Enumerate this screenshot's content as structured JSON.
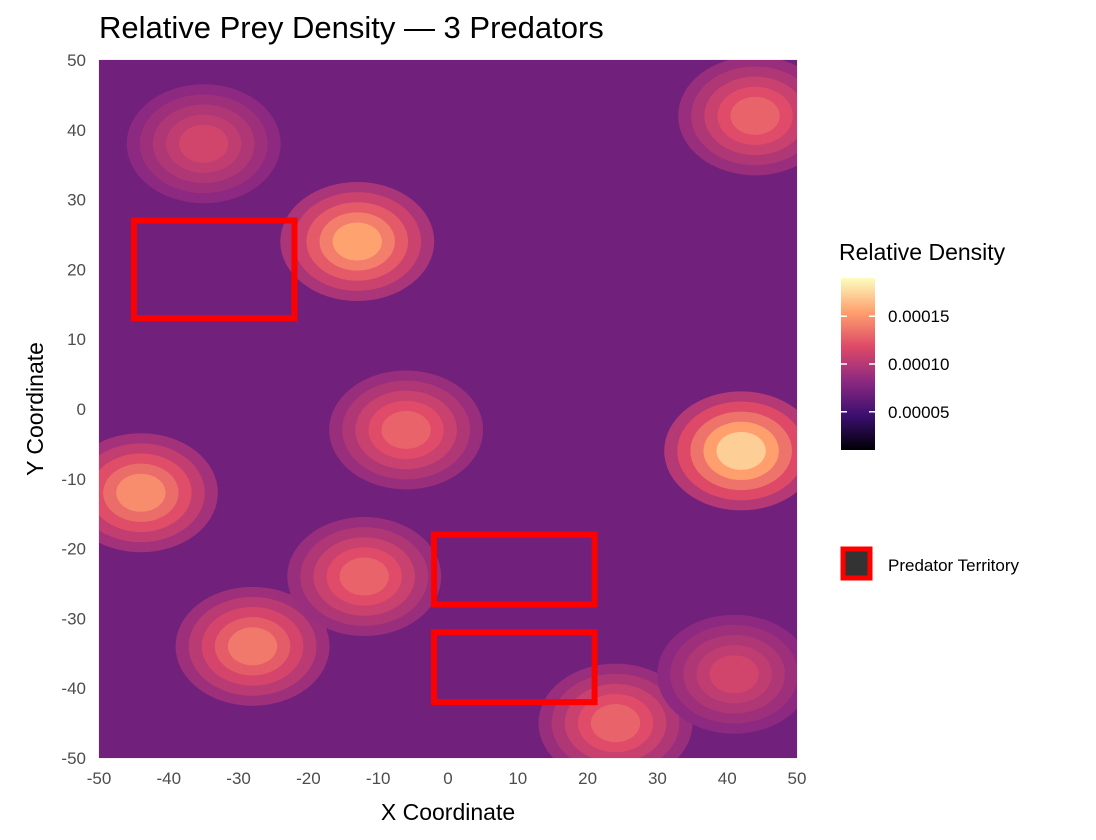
{
  "chart_data": {
    "type": "heatmap",
    "title": "Relative Prey Density — 3 Predators",
    "xlabel": "X Coordinate",
    "ylabel": "Y Coordinate",
    "xlim": [
      -50,
      50
    ],
    "ylim": [
      -50,
      50
    ],
    "x_ticks": [
      -50,
      -40,
      -30,
      -20,
      -10,
      0,
      10,
      20,
      30,
      40,
      50
    ],
    "y_ticks": [
      -50,
      -40,
      -30,
      -20,
      -10,
      0,
      10,
      20,
      30,
      40,
      50
    ],
    "grid": true,
    "colorbar": {
      "title": "Relative Density",
      "range": [
        1e-05,
        0.00019
      ],
      "ticks": [
        5e-05,
        0.0001,
        0.00015
      ],
      "tick_labels": [
        "0.00005",
        "0.00010",
        "0.00015"
      ],
      "colors": [
        "#000004",
        "#3b0f70",
        "#8c2981",
        "#de4968",
        "#fe9f6d",
        "#fcfdbf"
      ]
    },
    "density_peaks": [
      {
        "x": 42,
        "y": -6,
        "value": 0.00019
      },
      {
        "x": -13,
        "y": 24,
        "value": 0.00017
      },
      {
        "x": -28,
        "y": -34,
        "value": 0.00015
      },
      {
        "x": -44,
        "y": -12,
        "value": 0.00016
      },
      {
        "x": -6,
        "y": -3,
        "value": 0.00014
      },
      {
        "x": 44,
        "y": 42,
        "value": 0.00014
      },
      {
        "x": 24,
        "y": -45,
        "value": 0.00014
      },
      {
        "x": -12,
        "y": -24,
        "value": 0.00014
      },
      {
        "x": -35,
        "y": 38,
        "value": 0.00012
      },
      {
        "x": 41,
        "y": -38,
        "value": 0.00012
      }
    ],
    "predator_territories": [
      {
        "x": [
          -45,
          -22
        ],
        "y": [
          13,
          27
        ]
      },
      {
        "x": [
          -2,
          21
        ],
        "y": [
          -28,
          -18
        ]
      },
      {
        "x": [
          -2,
          21
        ],
        "y": [
          -42,
          -32
        ]
      }
    ],
    "territory_color": "#ff0000",
    "legend": [
      {
        "label": "Predator Territory",
        "fill": "#333333",
        "border": "#ff0000"
      }
    ]
  }
}
